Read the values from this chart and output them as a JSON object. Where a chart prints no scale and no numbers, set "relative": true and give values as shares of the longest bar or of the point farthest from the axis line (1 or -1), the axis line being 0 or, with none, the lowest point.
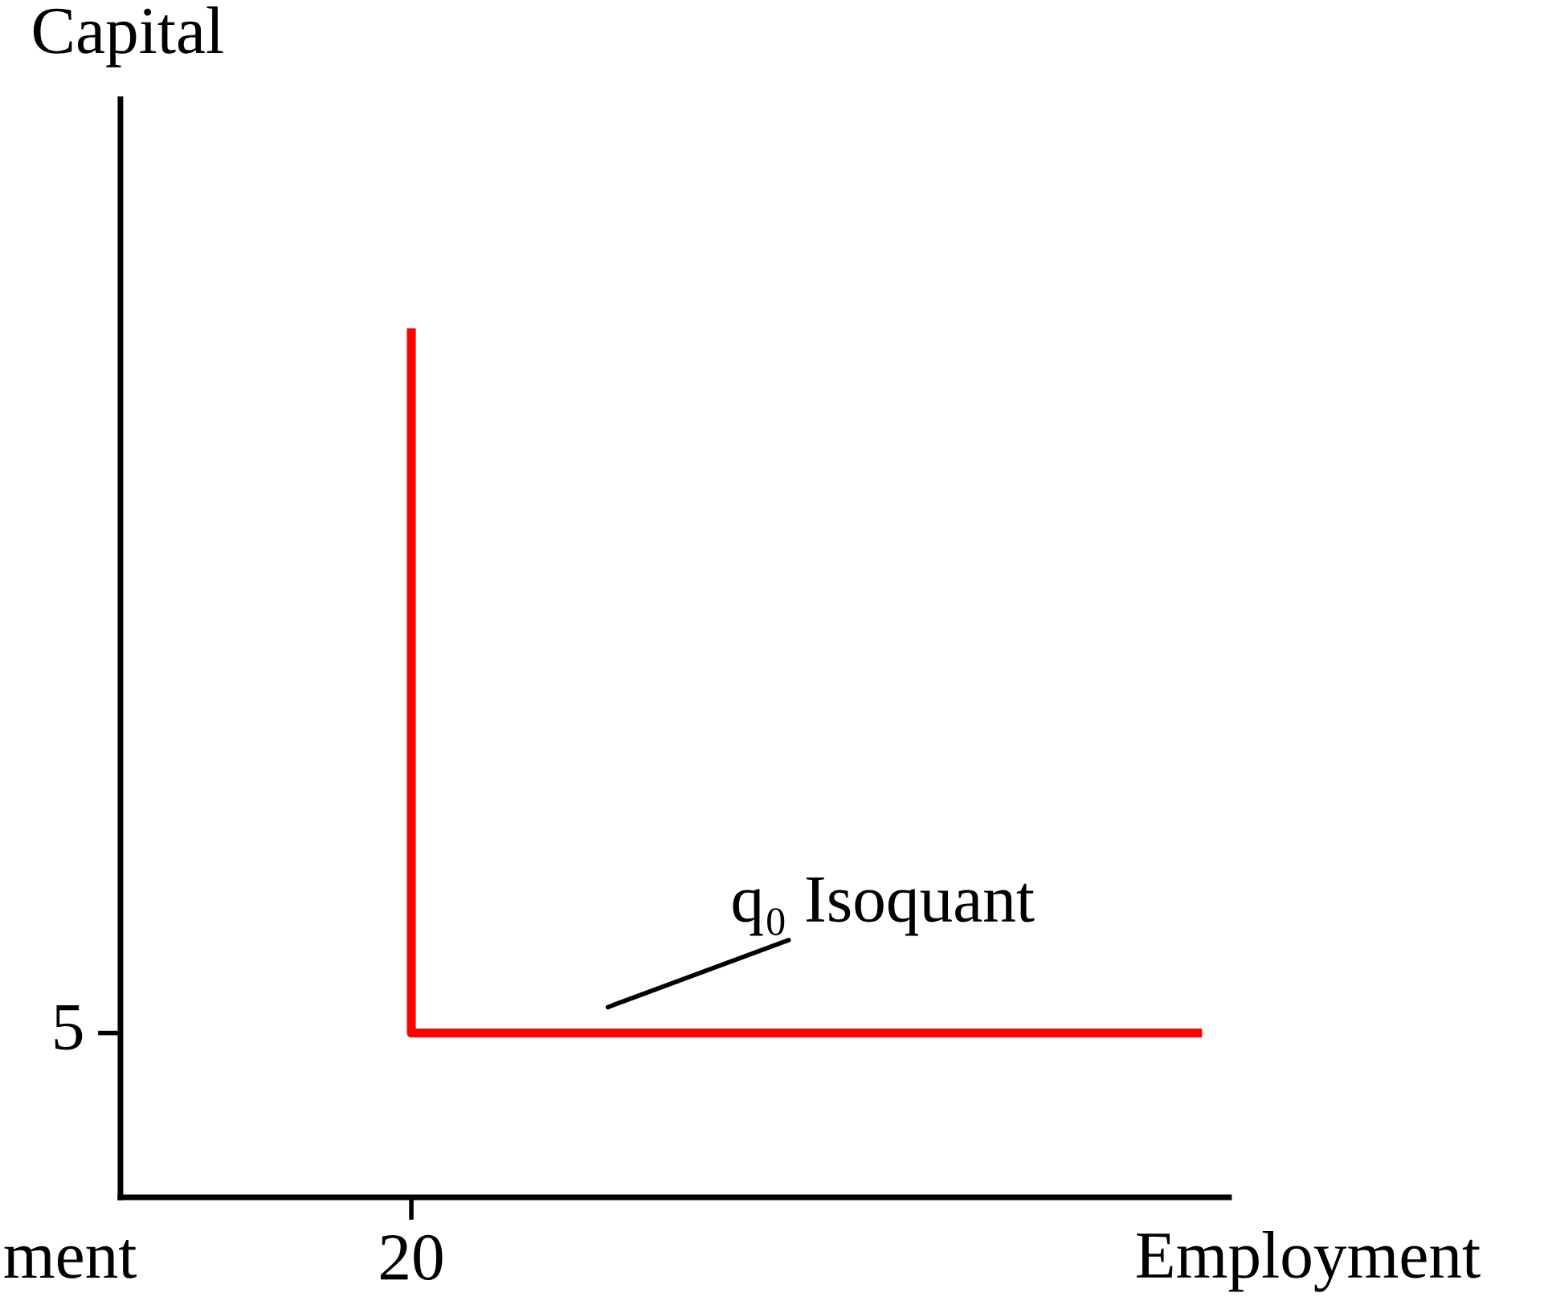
{
  "chart_data": {
    "type": "step",
    "xlabel": "Employment",
    "ylabel": "Capital",
    "relative": true,
    "categories": [
      null,
      null
    ],
    "series": [
      {
        "color": "#ff0000",
        "values": [
          1,
          0.19
        ]
      }
    ],
    "annotations": [
      "ment",
      "q₀ Isoquant",
      "5",
      "20"
    ],
    "grid": false,
    "legend": false,
    "marker": "none",
    "line_style": "solid"
  }
}
